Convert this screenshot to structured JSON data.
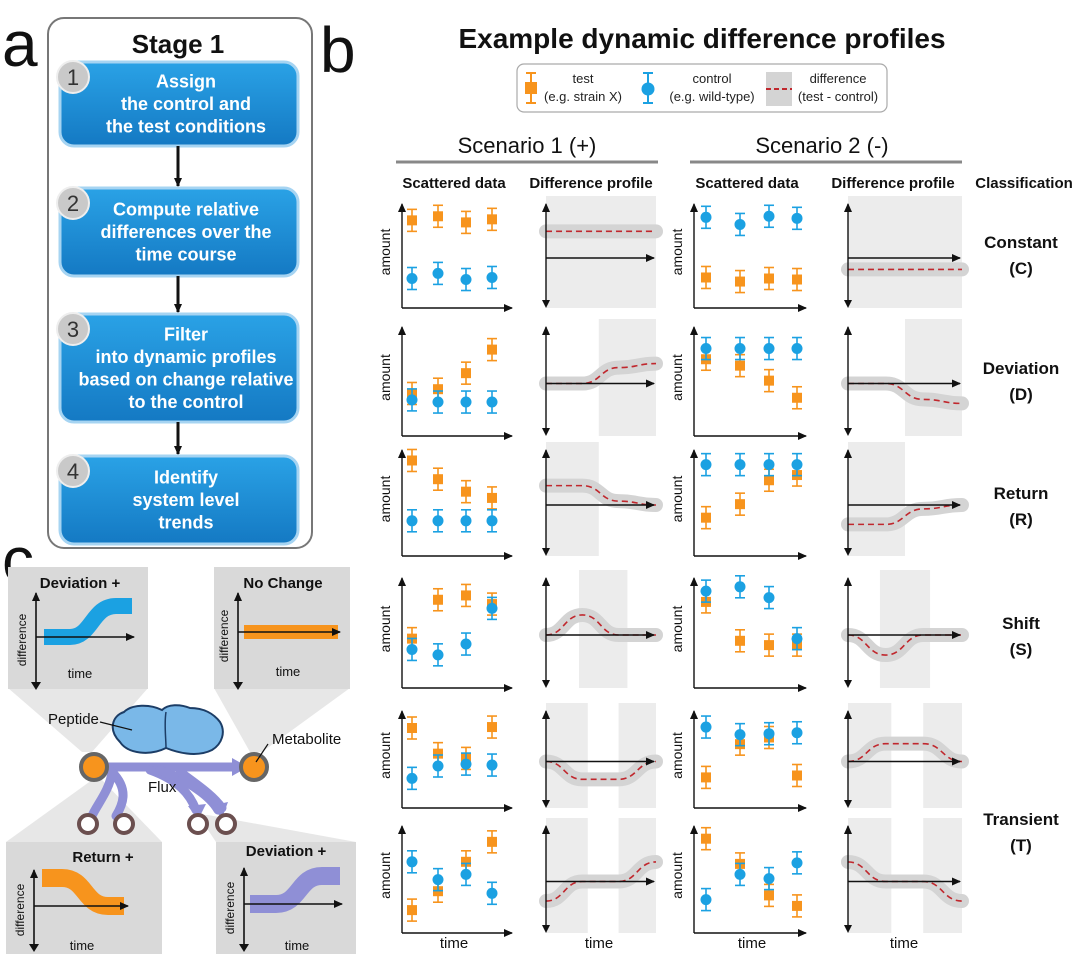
{
  "panel_labels": {
    "a": "a",
    "b": "b",
    "c": "c"
  },
  "panel_a": {
    "title": "Stage 1",
    "steps": [
      {
        "num": "1",
        "lines": [
          "Assign",
          "the control and",
          "the test conditions"
        ]
      },
      {
        "num": "2",
        "lines": [
          "Compute relative",
          "differences over the",
          "time course"
        ]
      },
      {
        "num": "3",
        "lines": [
          "Filter",
          "into dynamic profiles",
          "based on change relative",
          "to the control"
        ]
      },
      {
        "num": "4",
        "lines": [
          "Identify",
          "system level",
          "trends"
        ]
      }
    ]
  },
  "panel_b": {
    "title": "Example dynamic difference profiles",
    "legend": {
      "test": [
        "test",
        "(e.g. strain X)"
      ],
      "control": [
        "control",
        "(e.g. wild-type)"
      ],
      "difference": [
        "difference",
        "(test - control)"
      ]
    },
    "scenarios": [
      "Scenario  1 (+)",
      "Scenario 2 (-)"
    ],
    "col_headers": [
      "Scattered data",
      "Difference profile",
      "Scattered data",
      "Difference profile",
      "Classification"
    ],
    "y_label": "amount",
    "x_label": "time",
    "classes": [
      [
        "Constant",
        "(C)"
      ],
      [
        "Deviation",
        "(D)"
      ],
      [
        "Return",
        "(R)"
      ],
      [
        "Shift",
        "(S)"
      ],
      [
        "Transient",
        "(T)"
      ]
    ]
  },
  "panel_c": {
    "labels": {
      "peptide": "Peptide",
      "metabolite": "Metabolite",
      "flux": "Flux"
    },
    "insets": [
      {
        "title": "Deviation +",
        "ylabel": "difference",
        "xlabel": "time"
      },
      {
        "title": "No Change",
        "ylabel": "difference",
        "xlabel": "time"
      },
      {
        "title": "Return +",
        "ylabel": "difference",
        "xlabel": "time"
      },
      {
        "title": "Deviation +",
        "ylabel": "difference",
        "xlabel": "time"
      }
    ]
  },
  "colors": {
    "test": "#f7941d",
    "control": "#1ba1e2",
    "difference_line": "#c0272d",
    "band": "#d4d4d4",
    "flux": "#8f8fd6",
    "step_box": "#1c8fd4"
  },
  "chart_data": {
    "type": "scatter",
    "note_units": "relative amount, arbitrary",
    "x": [
      1,
      2,
      3,
      4
    ],
    "rows": [
      {
        "class": "C",
        "s1": {
          "test": [
            0.82,
            0.86,
            0.8,
            0.83
          ],
          "control": [
            0.25,
            0.3,
            0.24,
            0.26
          ],
          "diff": [
            0.7,
            0.7,
            0.7,
            0.7
          ]
        },
        "s2": {
          "test": [
            0.26,
            0.22,
            0.25,
            0.24
          ],
          "control": [
            0.85,
            0.78,
            0.86,
            0.84
          ],
          "diff": [
            -0.3,
            -0.3,
            -0.3,
            -0.3
          ]
        }
      },
      {
        "class": "D",
        "s1": {
          "test": [
            0.36,
            0.4,
            0.55,
            0.77
          ],
          "control": [
            0.3,
            0.28,
            0.28,
            0.28
          ],
          "diff": [
            0.0,
            0.0,
            0.4,
            0.5
          ]
        },
        "s2": {
          "test": [
            0.68,
            0.62,
            0.48,
            0.32
          ],
          "control": [
            0.78,
            0.78,
            0.78,
            0.78
          ],
          "diff": [
            0.0,
            0.0,
            -0.4,
            -0.5
          ]
        }
      },
      {
        "class": "R",
        "s1": {
          "test": [
            0.88,
            0.7,
            0.58,
            0.52
          ],
          "control": [
            0.3,
            0.3,
            0.3,
            0.3
          ],
          "diff": [
            0.5,
            0.5,
            0.1,
            0.0
          ]
        },
        "s2": {
          "test": [
            0.33,
            0.46,
            0.69,
            0.74
          ],
          "control": [
            0.84,
            0.84,
            0.84,
            0.84
          ],
          "diff": [
            -0.5,
            -0.5,
            -0.1,
            0.0
          ]
        }
      },
      {
        "class": "S",
        "s1": {
          "test": [
            0.42,
            0.78,
            0.82,
            0.74
          ],
          "control": [
            0.32,
            0.27,
            0.37,
            0.7
          ],
          "diff": [
            0.0,
            0.5,
            0.0,
            0.0
          ]
        },
        "s2": {
          "test": [
            0.76,
            0.4,
            0.36,
            0.36
          ],
          "control": [
            0.86,
            0.9,
            0.8,
            0.42
          ],
          "diff": [
            0.0,
            -0.5,
            0.0,
            0.0
          ]
        }
      },
      {
        "class": "T",
        "s1": {
          "test": [
            0.8,
            0.53,
            0.48,
            0.81
          ],
          "control": [
            0.27,
            0.4,
            0.42,
            0.41
          ],
          "diff": [
            0.0,
            -0.5,
            -0.5,
            0.0
          ]
        },
        "s2": {
          "test": [
            0.28,
            0.63,
            0.7,
            0.3
          ],
          "control": [
            0.81,
            0.73,
            0.74,
            0.75
          ],
          "diff": [
            0.0,
            0.5,
            0.5,
            0.0
          ]
        }
      },
      {
        "class": "T",
        "s1": {
          "test": [
            0.18,
            0.36,
            0.64,
            0.83
          ],
          "control": [
            0.64,
            0.47,
            0.52,
            0.34
          ],
          "diff": [
            -0.5,
            0.0,
            0.0,
            0.5
          ]
        },
        "s2": {
          "test": [
            0.86,
            0.62,
            0.32,
            0.22
          ],
          "control": [
            0.28,
            0.52,
            0.48,
            0.63
          ],
          "diff": [
            0.5,
            0.0,
            0.0,
            -0.5
          ]
        }
      }
    ]
  }
}
